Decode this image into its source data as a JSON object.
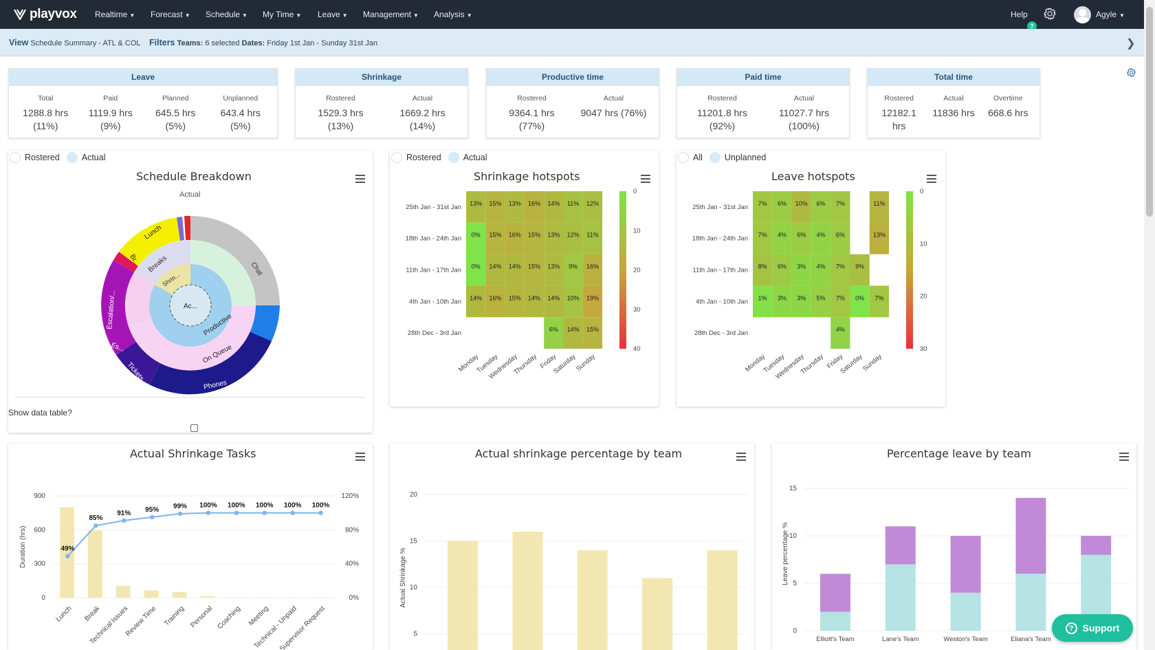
{
  "nav": {
    "brand": "playvox",
    "items": [
      "Realtime",
      "Forecast",
      "Schedule",
      "My Time",
      "Leave",
      "Management",
      "Analysis"
    ],
    "help": "Help",
    "help_badge": "?",
    "user": "Agyle"
  },
  "filterbar": {
    "view_label": "View",
    "view_value": "Schedule Summary - ATL & COL",
    "filters_label": "Filters",
    "teams_label": "Teams:",
    "teams_value": "6 selected",
    "dates_label": "Dates:",
    "dates_value": "Friday 1st Jan - Sunday 31st Jan"
  },
  "cards": [
    {
      "title": "Leave",
      "cols": [
        {
          "label": "Total",
          "line1": "1288.8 hrs",
          "line2": "(11%)"
        },
        {
          "label": "Paid",
          "line1": "1119.9 hrs",
          "line2": "(9%)"
        },
        {
          "label": "Planned",
          "line1": "645.5 hrs",
          "line2": "(5%)"
        },
        {
          "label": "Unplanned",
          "line1": "643.4 hrs",
          "line2": "(5%)"
        }
      ]
    },
    {
      "title": "Shrinkage",
      "cols": [
        {
          "label": "Rostered",
          "line1": "1529.3 hrs",
          "line2": "(13%)"
        },
        {
          "label": "Actual",
          "line1": "1669.2 hrs",
          "line2": "(14%)"
        }
      ]
    },
    {
      "title": "Productive time",
      "cols": [
        {
          "label": "Rostered",
          "line1": "9364.1 hrs",
          "line2": "(77%)"
        },
        {
          "label": "Actual",
          "line1": "9047 hrs (76%)",
          "line2": ""
        }
      ]
    },
    {
      "title": "Paid time",
      "cols": [
        {
          "label": "Rostered",
          "line1": "11201.8 hrs",
          "line2": "(92%)"
        },
        {
          "label": "Actual",
          "line1": "11027.7 hrs",
          "line2": "(100%)"
        }
      ]
    },
    {
      "title": "Total time",
      "cols": [
        {
          "label": "Rostered",
          "line1": "12182.1",
          "line2": "hrs"
        },
        {
          "label": "Actual",
          "line1": "11836 hrs",
          "line2": ""
        },
        {
          "label": "Overtime",
          "line1": "668.6 hrs",
          "line2": ""
        }
      ]
    }
  ],
  "schedule_breakdown": {
    "toggle_a": "Rostered",
    "toggle_b": "Actual",
    "title": "Schedule Breakdown",
    "subtitle": "Actual",
    "show_table": "Show data table?",
    "labels": {
      "inner_center": "Ac...",
      "productive": "Productive",
      "on_queue": "On Queue",
      "phones": "Phones",
      "chat": "Chat",
      "tickets": "Tickets",
      "escalation": "Escalation/...",
      "es": "Es...",
      "lunch": "Lunch",
      "breaks": "Breaks",
      "br": "Br...",
      "shrin": "Shrin..."
    }
  },
  "shrinkage_hotspots": {
    "toggle_a": "Rostered",
    "toggle_b": "Actual",
    "title": "Shrinkage hotspots",
    "rows": [
      "25th Jan - 31st Jan",
      "18th Jan - 24th Jan",
      "11th Jan - 17th Jan",
      "4th Jan - 10th Jan",
      "28th Dec - 3rd Jan"
    ],
    "days": [
      "Monday",
      "Tuesday",
      "Wednesday",
      "Thursday",
      "Friday",
      "Saturday",
      "Sunday"
    ],
    "values": [
      [
        13,
        15,
        13,
        16,
        14,
        11,
        12
      ],
      [
        0,
        15,
        16,
        15,
        13,
        12,
        11
      ],
      [
        0,
        14,
        14,
        15,
        13,
        9,
        16
      ],
      [
        14,
        16,
        15,
        14,
        14,
        10,
        19
      ],
      [
        null,
        null,
        null,
        null,
        6,
        14,
        15
      ]
    ],
    "scale_ticks": [
      "0",
      "10",
      "20",
      "30",
      "40"
    ]
  },
  "leave_hotspots": {
    "toggle_a": "All",
    "toggle_b": "Unplanned",
    "title": "Leave hotspots",
    "rows": [
      "25th Jan - 31st Jan",
      "18th Jan - 24th Jan",
      "11th Jan - 17th Jan",
      "4th Jan - 10th Jan",
      "28th Dec - 3rd Jan"
    ],
    "days": [
      "Monday",
      "Tuesday",
      "Wednesday",
      "Thursday",
      "Friday",
      "Saturday",
      "Sunday"
    ],
    "values": [
      [
        7,
        6,
        10,
        6,
        7,
        null,
        11
      ],
      [
        7,
        4,
        6,
        4,
        6,
        null,
        13
      ],
      [
        8,
        6,
        3,
        4,
        7,
        9,
        null
      ],
      [
        1,
        3,
        3,
        5,
        7,
        0,
        7
      ],
      [
        null,
        null,
        null,
        null,
        4,
        null,
        null
      ]
    ],
    "scale_ticks": [
      "0",
      "10",
      "20",
      "30"
    ]
  },
  "chart_data": [
    {
      "type": "bar",
      "title": "Actual Shrinkage Tasks",
      "ylabel": "Duration (hrs)",
      "categories": [
        "Lunch",
        "Break",
        "Technical Issues",
        "Review Time",
        "Training",
        "Personal",
        "Coaching",
        "Meeting",
        "Technical - Unpaid",
        "Supervisor Request"
      ],
      "series": [
        {
          "name": "Duration (hrs)",
          "type": "bar",
          "values": [
            800,
            595,
            105,
            65,
            50,
            12,
            3,
            2,
            1,
            1
          ]
        },
        {
          "name": "Cumulative %",
          "type": "line",
          "values": [
            49,
            85,
            91,
            95,
            99,
            100,
            100,
            100,
            100,
            100
          ]
        }
      ],
      "ylim": [
        0,
        900
      ],
      "y_ticks": [
        "0",
        "300",
        "600",
        "900"
      ],
      "y2_ticks": [
        "0%",
        "40%",
        "80%",
        "120%"
      ],
      "y2lim": [
        0,
        120
      ]
    },
    {
      "type": "bar",
      "title": "Actual shrinkage percentage by team",
      "ylabel": "Actual Shrinkage %",
      "values": [
        15,
        16,
        14,
        11,
        14
      ],
      "ylim": [
        0,
        20
      ],
      "y_ticks": [
        "5",
        "10",
        "15",
        "20"
      ]
    },
    {
      "type": "bar",
      "title": "Percentage leave by team",
      "ylabel": "Leave percentage %",
      "categories": [
        "Elliott's Team",
        "Lane's Team",
        "Weston's Team",
        "Eliana's Team",
        "Nelson's Team"
      ],
      "series": [
        {
          "values": [
            2,
            7,
            4,
            6,
            8
          ]
        },
        {
          "values": [
            4,
            4,
            6,
            8,
            2
          ]
        }
      ],
      "ylim": [
        0,
        15
      ],
      "y_ticks": [
        "0",
        "5",
        "10",
        "15"
      ]
    }
  ],
  "support": {
    "label": "Support",
    "icon": "?"
  },
  "colors": {
    "nav_bg": "#222a35",
    "filter_bg": "#dcebf5",
    "card_head": "#d4e8f5",
    "accent": "#1fbf9f",
    "bar_yellow": "#f3e7b1",
    "bar_purple": "#c08ad8",
    "bar_teal": "#b6e3e3"
  }
}
